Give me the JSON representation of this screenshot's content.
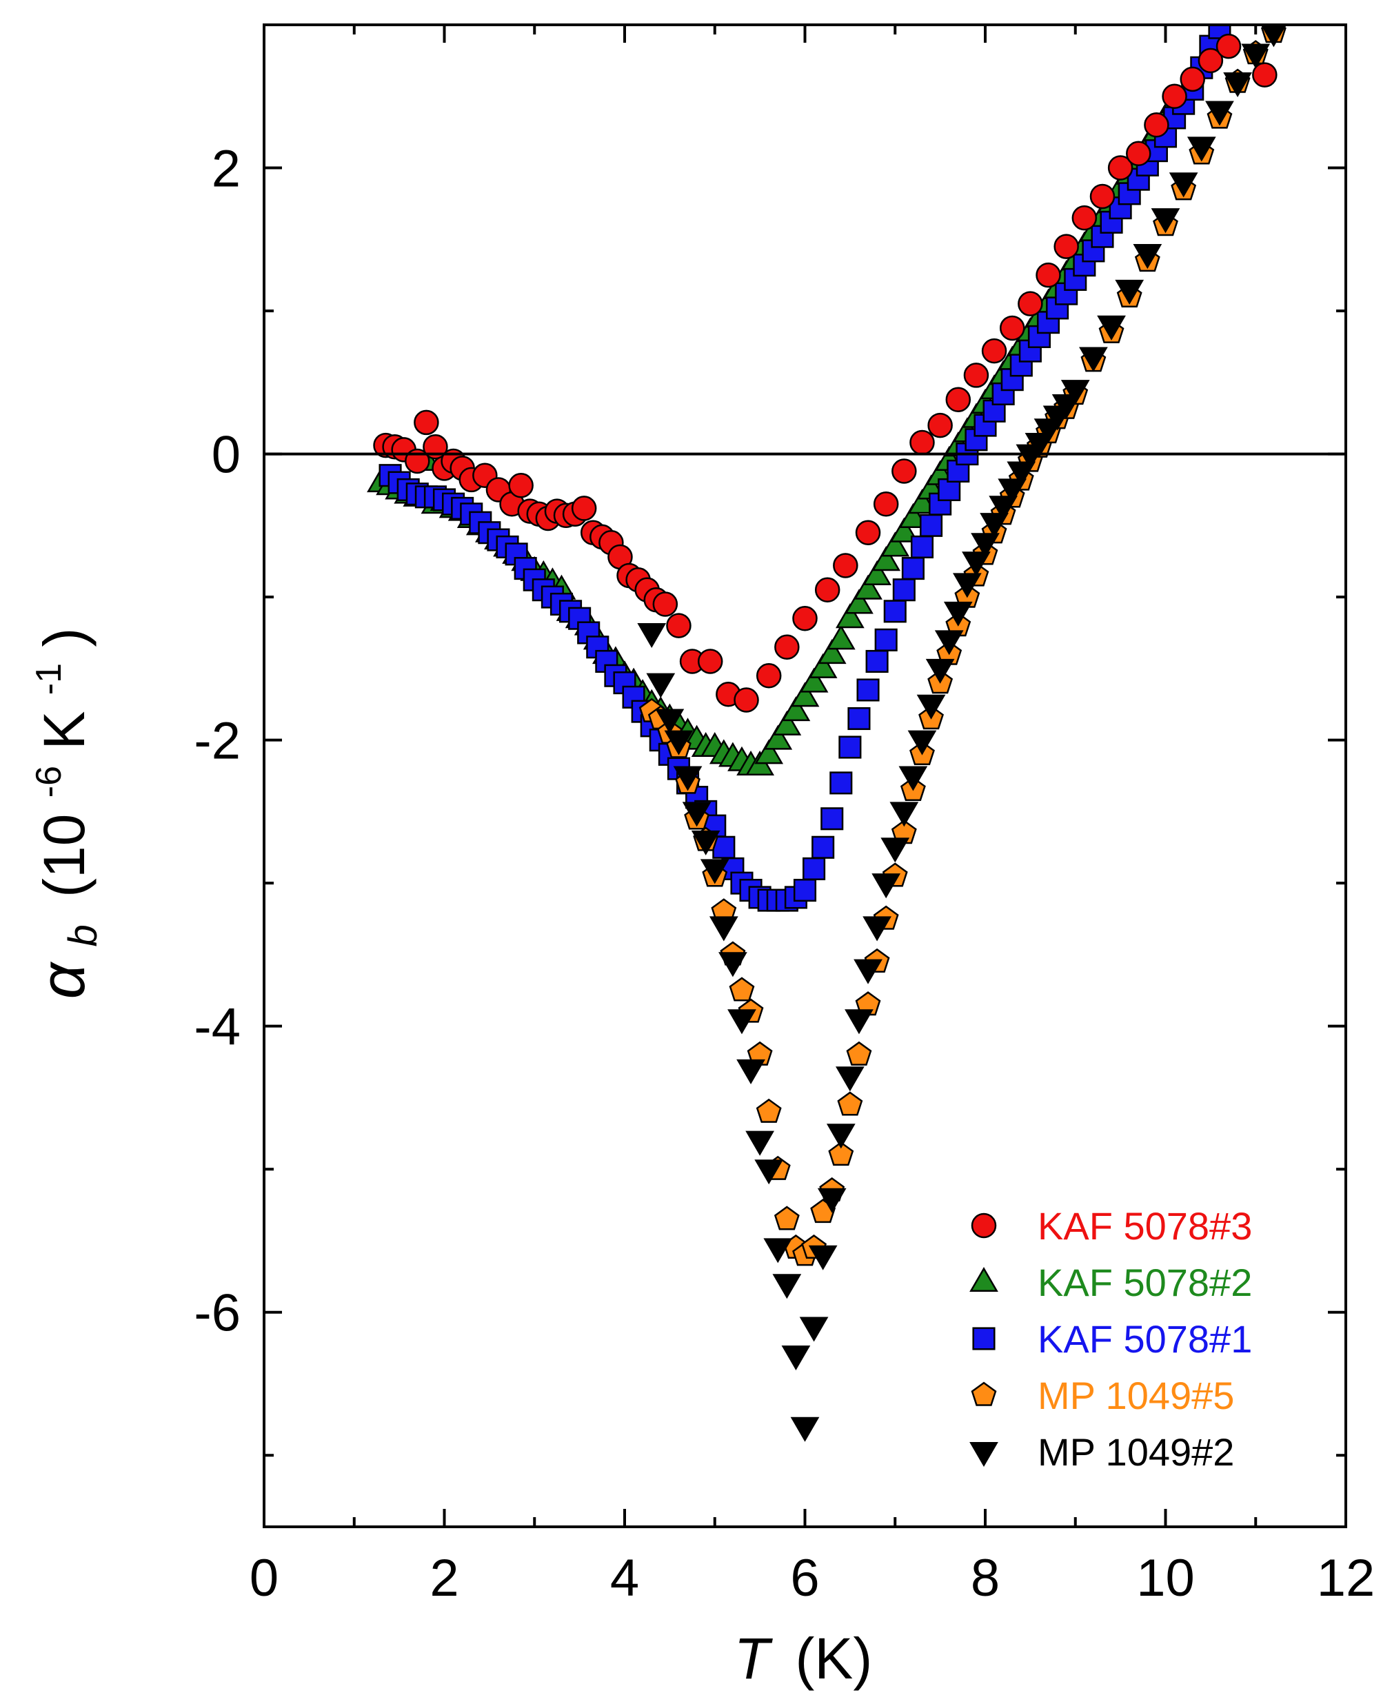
{
  "chart_data": {
    "type": "scatter",
    "title": "",
    "xlabel": {
      "symbol": "T",
      "unit": "(K)"
    },
    "ylabel": {
      "symbol": "α",
      "subscript": "b",
      "unit_open": "(10",
      "exp1": "-6",
      "unit_mid": " K",
      "exp2": "-1",
      "unit_close": ")"
    },
    "xlim": [
      0,
      12
    ],
    "ylim": [
      -7.5,
      3.0
    ],
    "x_ticks": [
      0,
      2,
      4,
      6,
      8,
      10,
      12
    ],
    "x_tick_labels": [
      "0",
      "2",
      "4",
      "6",
      "8",
      "10",
      "12"
    ],
    "y_ticks": [
      -6,
      -4,
      -2,
      0,
      2
    ],
    "y_tick_labels": [
      "-6",
      "-4",
      "-2",
      "0",
      "2"
    ],
    "zero_line": true,
    "grid": false,
    "legend_position": "bottom-right",
    "series": [
      {
        "name": "KAF 5078#3",
        "color": "#ee1111",
        "marker": "circle",
        "x": [
          1.35,
          1.45,
          1.55,
          1.7,
          1.8,
          1.9,
          2.0,
          2.1,
          2.2,
          2.3,
          2.45,
          2.6,
          2.75,
          2.85,
          2.95,
          3.05,
          3.15,
          3.25,
          3.35,
          3.45,
          3.55,
          3.65,
          3.75,
          3.85,
          3.95,
          4.05,
          4.15,
          4.25,
          4.35,
          4.45,
          4.6,
          4.75,
          4.95,
          5.15,
          5.35,
          5.6,
          5.8,
          6.0,
          6.25,
          6.45,
          6.7,
          6.9,
          7.1,
          7.3,
          7.5,
          7.7,
          7.9,
          8.1,
          8.3,
          8.5,
          8.7,
          8.9,
          9.1,
          9.3,
          9.5,
          9.7,
          9.9,
          10.1,
          10.3,
          10.5,
          10.7,
          11.1
        ],
        "values": [
          0.06,
          0.05,
          0.03,
          -0.05,
          0.22,
          0.05,
          -0.1,
          -0.05,
          -0.1,
          -0.18,
          -0.15,
          -0.25,
          -0.35,
          -0.22,
          -0.4,
          -0.42,
          -0.45,
          -0.4,
          -0.43,
          -0.42,
          -0.38,
          -0.55,
          -0.58,
          -0.62,
          -0.72,
          -0.85,
          -0.88,
          -0.95,
          -1.02,
          -1.05,
          -1.2,
          -1.45,
          -1.45,
          -1.68,
          -1.72,
          -1.55,
          -1.35,
          -1.15,
          -0.95,
          -0.78,
          -0.55,
          -0.35,
          -0.12,
          0.08,
          0.2,
          0.38,
          0.55,
          0.72,
          0.88,
          1.05,
          1.25,
          1.45,
          1.65,
          1.8,
          2.0,
          2.1,
          2.3,
          2.5,
          2.62,
          2.75,
          2.85,
          2.65
        ]
      },
      {
        "name": "KAF 5078#2",
        "color": "#1e8a1e",
        "marker": "triangle-up",
        "x": [
          1.3,
          1.4,
          1.5,
          1.6,
          1.7,
          1.8,
          1.9,
          2.0,
          2.1,
          2.2,
          2.3,
          2.4,
          2.5,
          2.6,
          2.7,
          2.8,
          2.9,
          3.0,
          3.1,
          3.2,
          3.3,
          3.4,
          3.5,
          3.6,
          3.7,
          3.8,
          3.9,
          4.0,
          4.1,
          4.2,
          4.3,
          4.4,
          4.5,
          4.6,
          4.7,
          4.8,
          4.9,
          5.0,
          5.1,
          5.2,
          5.3,
          5.4,
          5.5,
          5.6,
          5.7,
          5.8,
          5.9,
          6.0,
          6.1,
          6.2,
          6.3,
          6.4,
          6.5,
          6.6,
          6.7,
          6.8,
          6.9,
          7.0,
          7.1,
          7.2,
          7.3,
          7.4,
          7.5,
          7.6,
          7.7,
          7.8,
          7.9,
          8.0,
          8.1,
          8.2,
          8.3,
          8.4,
          8.5,
          8.6,
          8.7,
          8.8,
          8.9,
          9.0,
          9.1,
          9.2,
          9.3,
          9.4,
          9.5,
          9.6,
          9.7,
          9.8,
          9.9,
          10.0,
          10.1
        ],
        "values": [
          -0.2,
          -0.22,
          -0.25,
          -0.28,
          -0.3,
          -0.05,
          -0.35,
          -0.33,
          -0.38,
          -0.4,
          -0.45,
          -0.5,
          -0.55,
          -0.6,
          -0.65,
          -0.7,
          -0.75,
          -0.82,
          -0.85,
          -0.9,
          -0.95,
          -1.1,
          -1.15,
          -1.2,
          -1.3,
          -1.4,
          -1.45,
          -1.55,
          -1.6,
          -1.68,
          -1.75,
          -1.8,
          -1.85,
          -1.9,
          -1.95,
          -2.0,
          -2.05,
          -2.05,
          -2.1,
          -2.12,
          -2.15,
          -2.18,
          -2.18,
          -2.1,
          -2.0,
          -1.9,
          -1.8,
          -1.7,
          -1.6,
          -1.5,
          -1.4,
          -1.3,
          -1.15,
          -1.05,
          -0.95,
          -0.85,
          -0.75,
          -0.65,
          -0.55,
          -0.45,
          -0.35,
          -0.25,
          -0.15,
          -0.05,
          0.05,
          0.15,
          0.25,
          0.35,
          0.45,
          0.55,
          0.65,
          0.75,
          0.85,
          0.95,
          1.05,
          1.15,
          1.25,
          1.35,
          1.45,
          1.55,
          1.65,
          1.75,
          1.85,
          1.95,
          2.05,
          2.15,
          2.25,
          2.35,
          2.45
        ]
      },
      {
        "name": "KAF 5078#1",
        "color": "#1515ee",
        "marker": "square",
        "x": [
          1.4,
          1.5,
          1.6,
          1.7,
          1.8,
          1.9,
          2.0,
          2.1,
          2.2,
          2.3,
          2.4,
          2.5,
          2.6,
          2.7,
          2.8,
          2.9,
          3.0,
          3.1,
          3.2,
          3.3,
          3.4,
          3.5,
          3.6,
          3.7,
          3.8,
          3.9,
          4.0,
          4.1,
          4.2,
          4.3,
          4.4,
          4.5,
          4.6,
          4.7,
          4.8,
          4.9,
          5.0,
          5.1,
          5.2,
          5.3,
          5.4,
          5.5,
          5.6,
          5.7,
          5.8,
          5.9,
          6.0,
          6.1,
          6.2,
          6.3,
          6.4,
          6.5,
          6.6,
          6.7,
          6.8,
          6.9,
          7.0,
          7.1,
          7.2,
          7.3,
          7.4,
          7.5,
          7.6,
          7.7,
          7.8,
          7.9,
          8.0,
          8.1,
          8.2,
          8.3,
          8.4,
          8.5,
          8.6,
          8.7,
          8.8,
          8.9,
          9.0,
          9.1,
          9.2,
          9.3,
          9.4,
          9.5,
          9.6,
          9.7,
          9.8,
          9.9,
          10.0,
          10.1,
          10.2,
          10.3,
          10.4,
          10.5,
          10.6
        ],
        "values": [
          -0.15,
          -0.2,
          -0.25,
          -0.28,
          -0.3,
          -0.3,
          -0.32,
          -0.35,
          -0.38,
          -0.42,
          -0.48,
          -0.55,
          -0.6,
          -0.65,
          -0.7,
          -0.8,
          -0.88,
          -0.95,
          -1.0,
          -1.05,
          -1.1,
          -1.15,
          -1.25,
          -1.35,
          -1.45,
          -1.55,
          -1.6,
          -1.7,
          -1.8,
          -1.9,
          -2.0,
          -2.1,
          -2.2,
          -2.3,
          -2.4,
          -2.5,
          -2.6,
          -2.75,
          -2.9,
          -3.0,
          -3.05,
          -3.1,
          -3.12,
          -3.12,
          -3.12,
          -3.1,
          -3.05,
          -2.9,
          -2.75,
          -2.55,
          -2.3,
          -2.05,
          -1.85,
          -1.65,
          -1.45,
          -1.3,
          -1.1,
          -0.95,
          -0.8,
          -0.65,
          -0.5,
          -0.35,
          -0.25,
          -0.12,
          0.0,
          0.1,
          0.2,
          0.3,
          0.42,
          0.52,
          0.62,
          0.72,
          0.82,
          0.92,
          1.02,
          1.12,
          1.22,
          1.32,
          1.42,
          1.52,
          1.62,
          1.72,
          1.82,
          1.92,
          2.02,
          2.12,
          2.22,
          2.35,
          2.45,
          2.55,
          2.7,
          2.85,
          2.98
        ]
      },
      {
        "name": "MP 1049#5",
        "color": "#ff8c14",
        "marker": "pentagon",
        "x": [
          4.3,
          4.4,
          4.5,
          4.6,
          4.7,
          4.8,
          4.9,
          5.0,
          5.1,
          5.2,
          5.3,
          5.4,
          5.5,
          5.6,
          5.7,
          5.8,
          5.9,
          6.0,
          6.1,
          6.2,
          6.3,
          6.4,
          6.5,
          6.6,
          6.7,
          6.8,
          6.9,
          7.0,
          7.1,
          7.2,
          7.3,
          7.4,
          7.5,
          7.6,
          7.7,
          7.8,
          7.9,
          8.0,
          8.1,
          8.2,
          8.3,
          8.4,
          8.5,
          8.6,
          8.7,
          8.8,
          8.9,
          9.0,
          9.2,
          9.4,
          9.6,
          9.8,
          10.0,
          10.2,
          10.4,
          10.6,
          10.8,
          11.0,
          11.2
        ],
        "values": [
          -1.8,
          -1.85,
          -1.95,
          -2.05,
          -2.3,
          -2.55,
          -2.7,
          -2.95,
          -3.2,
          -3.5,
          -3.75,
          -3.9,
          -4.2,
          -4.6,
          -5.0,
          -5.35,
          -5.55,
          -5.6,
          -5.55,
          -5.3,
          -5.15,
          -4.9,
          -4.55,
          -4.2,
          -3.85,
          -3.55,
          -3.25,
          -2.95,
          -2.65,
          -2.35,
          -2.1,
          -1.85,
          -1.6,
          -1.4,
          -1.2,
          -1.0,
          -0.85,
          -0.7,
          -0.55,
          -0.42,
          -0.3,
          -0.18,
          -0.05,
          0.05,
          0.15,
          0.25,
          0.32,
          0.42,
          0.65,
          0.85,
          1.1,
          1.35,
          1.6,
          1.85,
          2.1,
          2.35,
          2.6,
          2.8,
          2.95
        ]
      },
      {
        "name": "MP 1049#2",
        "color": "#000000",
        "marker": "triangle-down",
        "x": [
          4.3,
          4.4,
          4.5,
          4.6,
          4.7,
          4.8,
          4.9,
          5.0,
          5.1,
          5.2,
          5.3,
          5.4,
          5.5,
          5.6,
          5.7,
          5.8,
          5.9,
          6.0,
          6.1,
          6.2,
          6.3,
          6.4,
          6.5,
          6.6,
          6.7,
          6.8,
          6.9,
          7.0,
          7.1,
          7.2,
          7.3,
          7.4,
          7.5,
          7.6,
          7.7,
          7.8,
          7.9,
          8.0,
          8.1,
          8.2,
          8.3,
          8.4,
          8.5,
          8.6,
          8.7,
          8.8,
          8.9,
          9.0,
          9.2,
          9.4,
          9.6,
          9.8,
          10.0,
          10.2,
          10.4,
          10.6,
          10.8,
          11.0,
          11.2
        ],
        "values": [
          -1.25,
          -1.6,
          -1.85,
          -2.0,
          -2.25,
          -2.5,
          -2.7,
          -2.9,
          -3.3,
          -3.55,
          -3.95,
          -4.3,
          -4.8,
          -5.0,
          -5.55,
          -5.8,
          -6.3,
          -6.8,
          -6.1,
          -5.6,
          -5.2,
          -4.75,
          -4.35,
          -3.95,
          -3.6,
          -3.3,
          -3.0,
          -2.75,
          -2.5,
          -2.25,
          -2.0,
          -1.75,
          -1.5,
          -1.3,
          -1.1,
          -0.9,
          -0.75,
          -0.62,
          -0.48,
          -0.36,
          -0.24,
          -0.12,
          0.0,
          0.08,
          0.18,
          0.27,
          0.35,
          0.45,
          0.68,
          0.9,
          1.15,
          1.4,
          1.65,
          1.9,
          2.15,
          2.4,
          2.6,
          2.8,
          2.95
        ]
      }
    ]
  }
}
